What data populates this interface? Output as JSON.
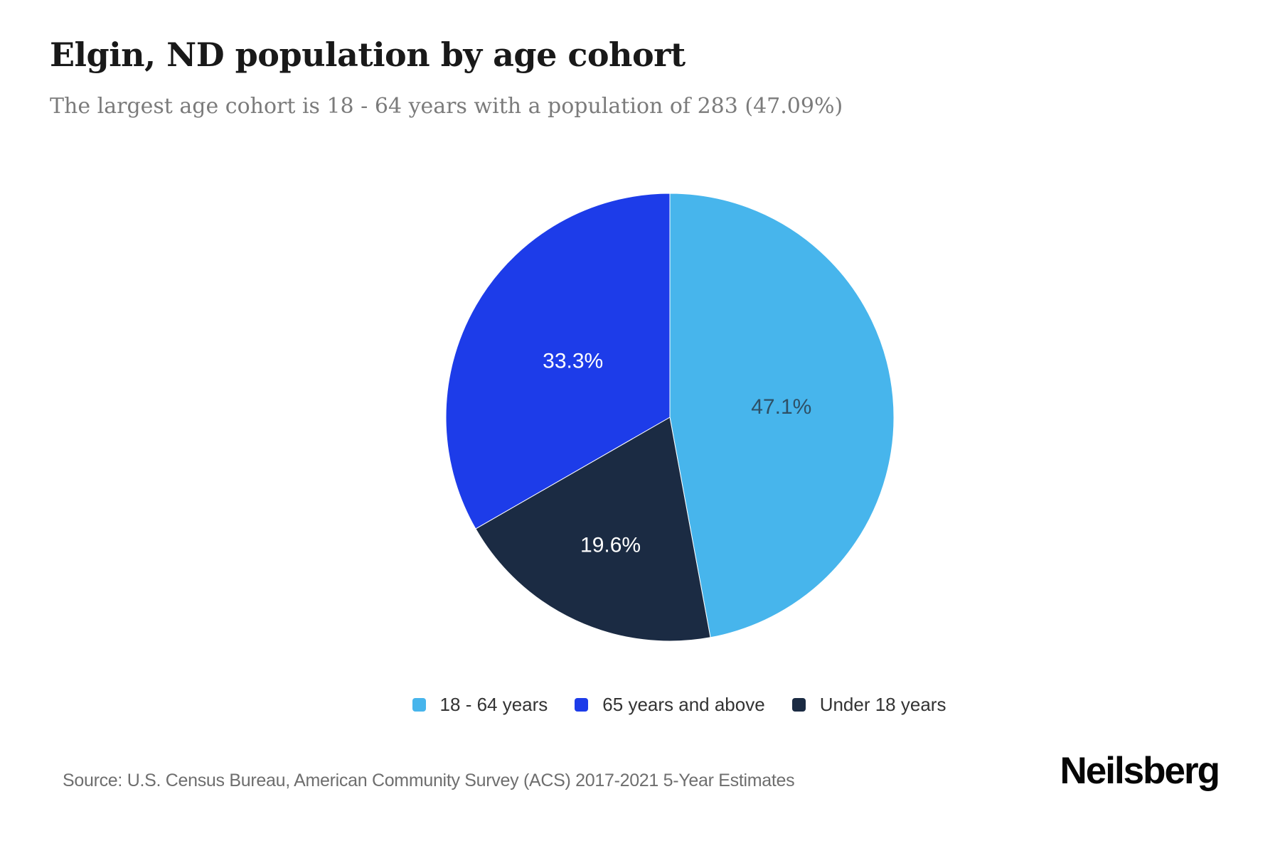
{
  "header": {
    "title": "Elgin, ND population by age cohort",
    "subtitle": "The largest age cohort is 18 - 64 years with a population of 283 (47.09%)"
  },
  "chart_data": {
    "type": "pie",
    "unit": "percent",
    "start_angle_deg": 0,
    "direction": "clockwise",
    "slices": [
      {
        "label": "18 - 64 years",
        "value": 47.1,
        "display": "47.1%",
        "color": "#47b5ec",
        "label_color": "#2e5066"
      },
      {
        "label": "Under 18 years",
        "value": 19.6,
        "display": "19.6%",
        "color": "#1b2b43",
        "label_color": "#ffffff"
      },
      {
        "label": "65 years and above",
        "value": 33.3,
        "display": "33.3%",
        "color": "#1d3ce9",
        "label_color": "#ffffff"
      }
    ],
    "legend": [
      {
        "label": "18 - 64 years",
        "color": "#47b5ec"
      },
      {
        "label": "65 years and above",
        "color": "#1d3ce9"
      },
      {
        "label": "Under 18 years",
        "color": "#1b2b43"
      }
    ],
    "legend_position": "bottom-center",
    "labels_inside": true
  },
  "footer": {
    "source": "Source: U.S. Census Bureau, American Community Survey (ACS) 2017-2021 5-Year Estimates",
    "brand": "Neilsberg"
  }
}
